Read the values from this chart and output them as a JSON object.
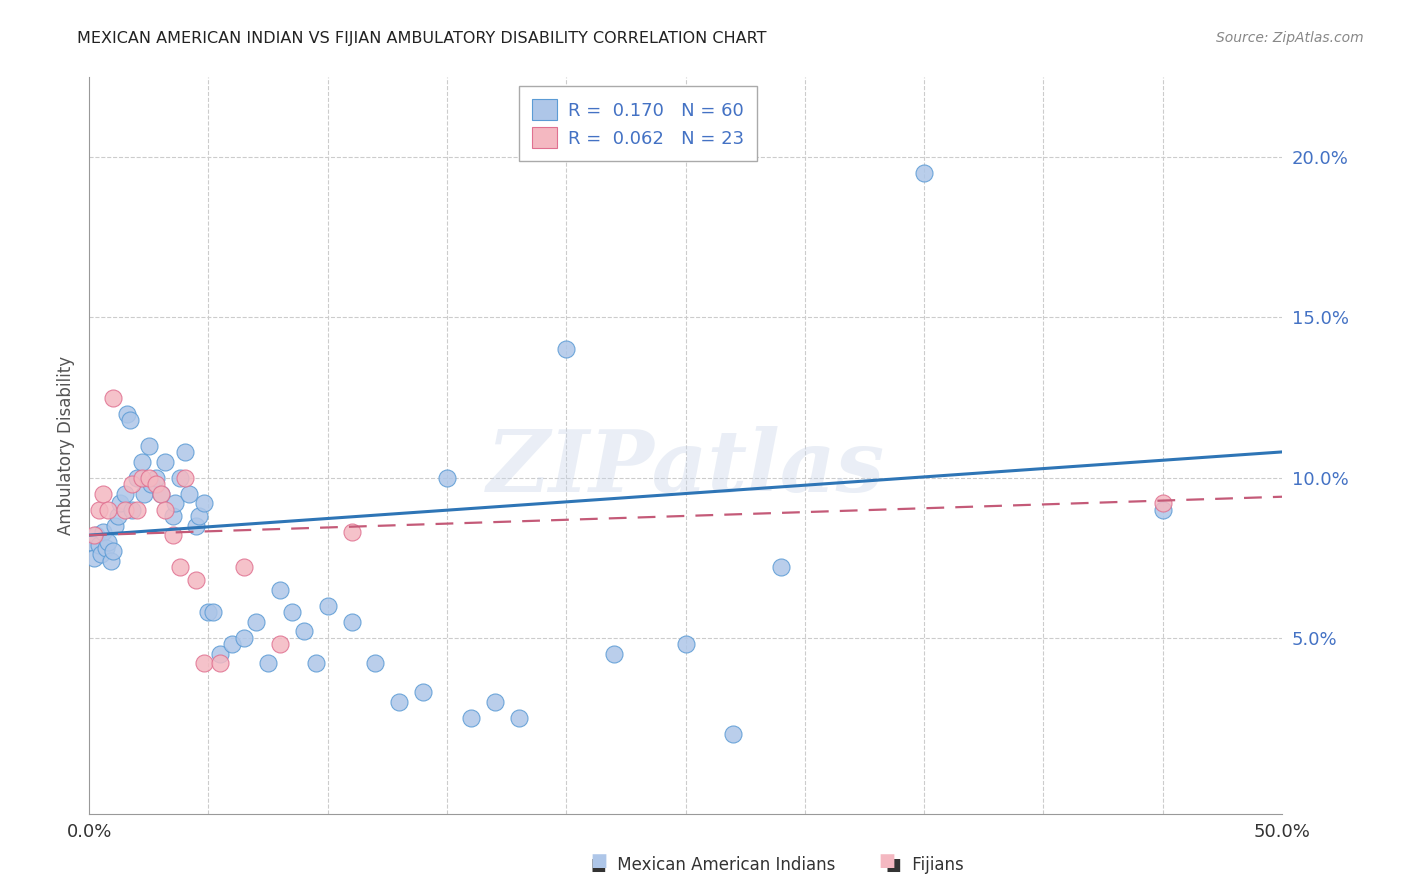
{
  "title": "MEXICAN AMERICAN INDIAN VS FIJIAN AMBULATORY DISABILITY CORRELATION CHART",
  "source": "Source: ZipAtlas.com",
  "ylabel": "Ambulatory Disability",
  "xlim": [
    0.0,
    0.5
  ],
  "ylim": [
    -0.005,
    0.225
  ],
  "yticks": [
    0.05,
    0.1,
    0.15,
    0.2
  ],
  "ytick_labels": [
    "5.0%",
    "10.0%",
    "15.0%",
    "20.0%"
  ],
  "watermark": "ZIPatlas",
  "blue_color": "#aec6e8",
  "blue_edge_color": "#5b9bd5",
  "pink_color": "#f4b8c1",
  "pink_edge_color": "#e07090",
  "blue_line_color": "#2e75b6",
  "pink_line_color": "#c45a78",
  "tick_color": "#4472c4",
  "blue_scatter": [
    [
      0.001,
      0.08
    ],
    [
      0.002,
      0.075
    ],
    [
      0.003,
      0.082
    ],
    [
      0.004,
      0.079
    ],
    [
      0.005,
      0.076
    ],
    [
      0.006,
      0.083
    ],
    [
      0.007,
      0.078
    ],
    [
      0.008,
      0.08
    ],
    [
      0.009,
      0.074
    ],
    [
      0.01,
      0.077
    ],
    [
      0.011,
      0.085
    ],
    [
      0.012,
      0.088
    ],
    [
      0.013,
      0.092
    ],
    [
      0.015,
      0.095
    ],
    [
      0.016,
      0.12
    ],
    [
      0.017,
      0.118
    ],
    [
      0.018,
      0.09
    ],
    [
      0.02,
      0.1
    ],
    [
      0.022,
      0.105
    ],
    [
      0.023,
      0.095
    ],
    [
      0.025,
      0.11
    ],
    [
      0.026,
      0.098
    ],
    [
      0.028,
      0.1
    ],
    [
      0.03,
      0.095
    ],
    [
      0.032,
      0.105
    ],
    [
      0.035,
      0.088
    ],
    [
      0.036,
      0.092
    ],
    [
      0.038,
      0.1
    ],
    [
      0.04,
      0.108
    ],
    [
      0.042,
      0.095
    ],
    [
      0.045,
      0.085
    ],
    [
      0.046,
      0.088
    ],
    [
      0.048,
      0.092
    ],
    [
      0.05,
      0.058
    ],
    [
      0.052,
      0.058
    ],
    [
      0.055,
      0.045
    ],
    [
      0.06,
      0.048
    ],
    [
      0.065,
      0.05
    ],
    [
      0.07,
      0.055
    ],
    [
      0.075,
      0.042
    ],
    [
      0.08,
      0.065
    ],
    [
      0.085,
      0.058
    ],
    [
      0.09,
      0.052
    ],
    [
      0.095,
      0.042
    ],
    [
      0.1,
      0.06
    ],
    [
      0.11,
      0.055
    ],
    [
      0.12,
      0.042
    ],
    [
      0.13,
      0.03
    ],
    [
      0.14,
      0.033
    ],
    [
      0.15,
      0.1
    ],
    [
      0.16,
      0.025
    ],
    [
      0.17,
      0.03
    ],
    [
      0.18,
      0.025
    ],
    [
      0.2,
      0.14
    ],
    [
      0.22,
      0.045
    ],
    [
      0.25,
      0.048
    ],
    [
      0.27,
      0.02
    ],
    [
      0.29,
      0.072
    ],
    [
      0.35,
      0.195
    ],
    [
      0.45,
      0.09
    ]
  ],
  "pink_scatter": [
    [
      0.002,
      0.082
    ],
    [
      0.004,
      0.09
    ],
    [
      0.006,
      0.095
    ],
    [
      0.008,
      0.09
    ],
    [
      0.01,
      0.125
    ],
    [
      0.015,
      0.09
    ],
    [
      0.018,
      0.098
    ],
    [
      0.02,
      0.09
    ],
    [
      0.022,
      0.1
    ],
    [
      0.025,
      0.1
    ],
    [
      0.028,
      0.098
    ],
    [
      0.03,
      0.095
    ],
    [
      0.032,
      0.09
    ],
    [
      0.035,
      0.082
    ],
    [
      0.038,
      0.072
    ],
    [
      0.04,
      0.1
    ],
    [
      0.045,
      0.068
    ],
    [
      0.048,
      0.042
    ],
    [
      0.055,
      0.042
    ],
    [
      0.065,
      0.072
    ],
    [
      0.08,
      0.048
    ],
    [
      0.11,
      0.083
    ],
    [
      0.45,
      0.092
    ]
  ],
  "blue_trendline": [
    [
      0.0,
      0.082
    ],
    [
      0.5,
      0.108
    ]
  ],
  "pink_trendline": [
    [
      0.0,
      0.082
    ],
    [
      0.5,
      0.094
    ]
  ]
}
